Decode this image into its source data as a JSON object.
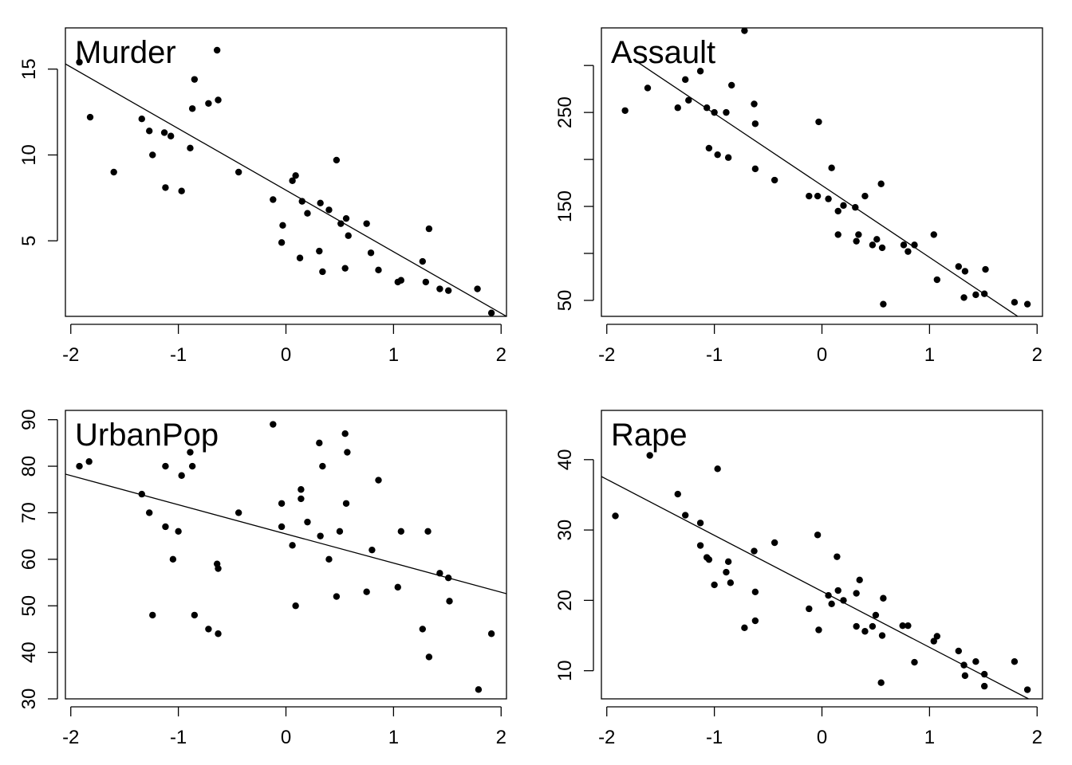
{
  "chart_data": [
    {
      "type": "scatter",
      "title": "Murder",
      "xlim": [
        -2,
        2
      ],
      "ylim": [
        0.6,
        17.4
      ],
      "x_ticks": [
        -2,
        -1,
        0,
        1,
        2
      ],
      "x_tick_labels": [
        "-2",
        "-1",
        "0",
        "1",
        "2"
      ],
      "y_ticks": [
        5,
        10,
        15
      ],
      "y_tick_labels": [
        "5",
        "10",
        "15"
      ],
      "fit_line": [
        [
          -2.05,
          15.3
        ],
        [
          2.05,
          0.6
        ]
      ],
      "points": [
        [
          -1.92,
          15.4
        ],
        [
          -1.82,
          12.2
        ],
        [
          -1.6,
          9.0
        ],
        [
          -1.34,
          12.1
        ],
        [
          -1.27,
          11.4
        ],
        [
          -1.24,
          10.0
        ],
        [
          -1.13,
          11.3
        ],
        [
          -1.12,
          8.1
        ],
        [
          -1.07,
          11.1
        ],
        [
          -0.97,
          7.9
        ],
        [
          -0.89,
          10.4
        ],
        [
          -0.87,
          12.7
        ],
        [
          -0.85,
          14.4
        ],
        [
          -0.72,
          13.0
        ],
        [
          -0.64,
          16.1
        ],
        [
          -0.63,
          13.2
        ],
        [
          -0.44,
          9.0
        ],
        [
          -0.12,
          7.4
        ],
        [
          -0.04,
          4.9
        ],
        [
          -0.03,
          5.9
        ],
        [
          0.06,
          8.5
        ],
        [
          0.09,
          8.8
        ],
        [
          0.13,
          4.0
        ],
        [
          0.15,
          7.3
        ],
        [
          0.2,
          6.6
        ],
        [
          0.31,
          4.4
        ],
        [
          0.32,
          7.2
        ],
        [
          0.34,
          3.2
        ],
        [
          0.4,
          6.8
        ],
        [
          0.47,
          9.7
        ],
        [
          0.51,
          6.0
        ],
        [
          0.55,
          3.4
        ],
        [
          0.56,
          6.3
        ],
        [
          0.58,
          5.3
        ],
        [
          0.75,
          6.0
        ],
        [
          0.79,
          4.3
        ],
        [
          0.86,
          3.3
        ],
        [
          1.04,
          2.6
        ],
        [
          1.07,
          2.7
        ],
        [
          1.27,
          3.8
        ],
        [
          1.3,
          2.6
        ],
        [
          1.33,
          5.7
        ],
        [
          1.43,
          2.2
        ],
        [
          1.51,
          2.1
        ],
        [
          1.78,
          2.2
        ],
        [
          1.91,
          0.8
        ]
      ]
    },
    {
      "type": "scatter",
      "title": "Assault",
      "xlim": [
        -2,
        2
      ],
      "ylim": [
        33,
        340
      ],
      "x_ticks": [
        -2,
        -1,
        0,
        1,
        2
      ],
      "x_tick_labels": [
        "-2",
        "-1",
        "0",
        "1",
        "2"
      ],
      "y_ticks": [
        50,
        100,
        150,
        200,
        250,
        300
      ],
      "y_tick_labels": [
        "50",
        "",
        "150",
        "",
        "250",
        ""
      ],
      "fit_line": [
        [
          -1.72,
          304
        ],
        [
          1.82,
          33
        ]
      ],
      "points": [
        [
          -1.83,
          252
        ],
        [
          -1.62,
          276
        ],
        [
          -1.34,
          255
        ],
        [
          -1.27,
          285
        ],
        [
          -1.24,
          263
        ],
        [
          -1.13,
          294
        ],
        [
          -1.07,
          255
        ],
        [
          -1.05,
          212
        ],
        [
          -1.0,
          250
        ],
        [
          -0.97,
          205
        ],
        [
          -0.89,
          250
        ],
        [
          -0.87,
          202
        ],
        [
          -0.84,
          279
        ],
        [
          -0.72,
          337
        ],
        [
          -0.63,
          259
        ],
        [
          -0.62,
          238
        ],
        [
          -0.62,
          190
        ],
        [
          -0.44,
          178
        ],
        [
          -0.12,
          161
        ],
        [
          -0.04,
          161
        ],
        [
          -0.03,
          240
        ],
        [
          0.06,
          158
        ],
        [
          0.09,
          191
        ],
        [
          0.15,
          145
        ],
        [
          0.15,
          120
        ],
        [
          0.2,
          151
        ],
        [
          0.31,
          149
        ],
        [
          0.32,
          113
        ],
        [
          0.34,
          120
        ],
        [
          0.4,
          161
        ],
        [
          0.47,
          109
        ],
        [
          0.51,
          115
        ],
        [
          0.56,
          106
        ],
        [
          0.55,
          174
        ],
        [
          0.57,
          46
        ],
        [
          0.76,
          109
        ],
        [
          0.8,
          102
        ],
        [
          0.86,
          109
        ],
        [
          1.04,
          120
        ],
        [
          1.07,
          72
        ],
        [
          1.27,
          86
        ],
        [
          1.33,
          81
        ],
        [
          1.32,
          53
        ],
        [
          1.43,
          56
        ],
        [
          1.51,
          57
        ],
        [
          1.52,
          83
        ],
        [
          1.79,
          48
        ],
        [
          1.91,
          46
        ]
      ]
    },
    {
      "type": "scatter",
      "title": "UrbanPop",
      "xlim": [
        -2,
        2
      ],
      "ylim": [
        30,
        92
      ],
      "x_ticks": [
        -2,
        -1,
        0,
        1,
        2
      ],
      "x_tick_labels": [
        "-2",
        "-1",
        "0",
        "1",
        "2"
      ],
      "y_ticks": [
        30,
        40,
        50,
        60,
        70,
        80,
        90
      ],
      "y_tick_labels": [
        "30",
        "40",
        "50",
        "60",
        "70",
        "80",
        "90"
      ],
      "fit_line": [
        [
          -2.05,
          78.3
        ],
        [
          2.05,
          52.6
        ]
      ],
      "points": [
        [
          -1.92,
          80
        ],
        [
          -1.83,
          81
        ],
        [
          -1.34,
          74
        ],
        [
          -1.27,
          70
        ],
        [
          -1.24,
          48
        ],
        [
          -1.12,
          80
        ],
        [
          -1.12,
          67
        ],
        [
          -1.05,
          60
        ],
        [
          -1.0,
          66
        ],
        [
          -0.97,
          78
        ],
        [
          -0.89,
          83
        ],
        [
          -0.87,
          80
        ],
        [
          -0.85,
          48
        ],
        [
          -0.72,
          45
        ],
        [
          -0.64,
          59
        ],
        [
          -0.63,
          58
        ],
        [
          -0.63,
          44
        ],
        [
          -0.44,
          70
        ],
        [
          -0.12,
          89
        ],
        [
          -0.04,
          72
        ],
        [
          -0.04,
          67
        ],
        [
          0.06,
          63
        ],
        [
          0.09,
          50
        ],
        [
          0.14,
          75
        ],
        [
          0.14,
          73
        ],
        [
          0.2,
          68
        ],
        [
          0.31,
          85
        ],
        [
          0.32,
          65
        ],
        [
          0.34,
          80
        ],
        [
          0.4,
          60
        ],
        [
          0.47,
          52
        ],
        [
          0.5,
          66
        ],
        [
          0.55,
          87
        ],
        [
          0.56,
          72
        ],
        [
          0.57,
          83
        ],
        [
          0.75,
          53
        ],
        [
          0.8,
          62
        ],
        [
          0.86,
          77
        ],
        [
          1.04,
          54
        ],
        [
          1.07,
          66
        ],
        [
          1.27,
          45
        ],
        [
          1.33,
          39
        ],
        [
          1.32,
          66
        ],
        [
          1.43,
          57
        ],
        [
          1.51,
          56
        ],
        [
          1.52,
          51
        ],
        [
          1.79,
          32
        ],
        [
          1.91,
          44
        ]
      ]
    },
    {
      "type": "scatter",
      "title": "Rape",
      "xlim": [
        -2,
        2
      ],
      "ylim": [
        6,
        47
      ],
      "x_ticks": [
        -2,
        -1,
        0,
        1,
        2
      ],
      "x_tick_labels": [
        "-2",
        "-1",
        "0",
        "1",
        "2"
      ],
      "y_ticks": [
        10,
        20,
        30,
        40
      ],
      "y_tick_labels": [
        "10",
        "20",
        "30",
        "40"
      ],
      "fit_line": [
        [
          -2.05,
          37.6
        ],
        [
          1.92,
          6
        ]
      ],
      "points": [
        [
          -1.92,
          32.0
        ],
        [
          -1.6,
          40.6
        ],
        [
          -1.34,
          35.1
        ],
        [
          -1.27,
          32.1
        ],
        [
          -1.13,
          31.0
        ],
        [
          -1.13,
          27.8
        ],
        [
          -1.07,
          26.1
        ],
        [
          -1.05,
          25.8
        ],
        [
          -1.0,
          22.2
        ],
        [
          -0.97,
          38.7
        ],
        [
          -0.89,
          24.0
        ],
        [
          -0.87,
          25.5
        ],
        [
          -0.85,
          22.5
        ],
        [
          -0.72,
          16.1
        ],
        [
          -0.63,
          27.0
        ],
        [
          -0.62,
          21.2
        ],
        [
          -0.62,
          17.1
        ],
        [
          -0.44,
          28.2
        ],
        [
          -0.12,
          18.8
        ],
        [
          -0.04,
          29.3
        ],
        [
          -0.03,
          15.8
        ],
        [
          0.06,
          20.7
        ],
        [
          0.09,
          19.5
        ],
        [
          0.14,
          26.2
        ],
        [
          0.15,
          21.4
        ],
        [
          0.2,
          20.0
        ],
        [
          0.32,
          16.3
        ],
        [
          0.32,
          21.0
        ],
        [
          0.35,
          22.9
        ],
        [
          0.4,
          15.6
        ],
        [
          0.47,
          16.3
        ],
        [
          0.5,
          17.9
        ],
        [
          0.55,
          8.3
        ],
        [
          0.56,
          15.0
        ],
        [
          0.57,
          20.3
        ],
        [
          0.75,
          16.4
        ],
        [
          0.8,
          16.4
        ],
        [
          0.86,
          11.2
        ],
        [
          1.04,
          14.2
        ],
        [
          1.07,
          14.9
        ],
        [
          1.27,
          12.8
        ],
        [
          1.32,
          10.8
        ],
        [
          1.33,
          9.3
        ],
        [
          1.43,
          11.3
        ],
        [
          1.51,
          9.5
        ],
        [
          1.51,
          7.8
        ],
        [
          1.79,
          11.3
        ],
        [
          1.91,
          7.3
        ]
      ]
    }
  ]
}
